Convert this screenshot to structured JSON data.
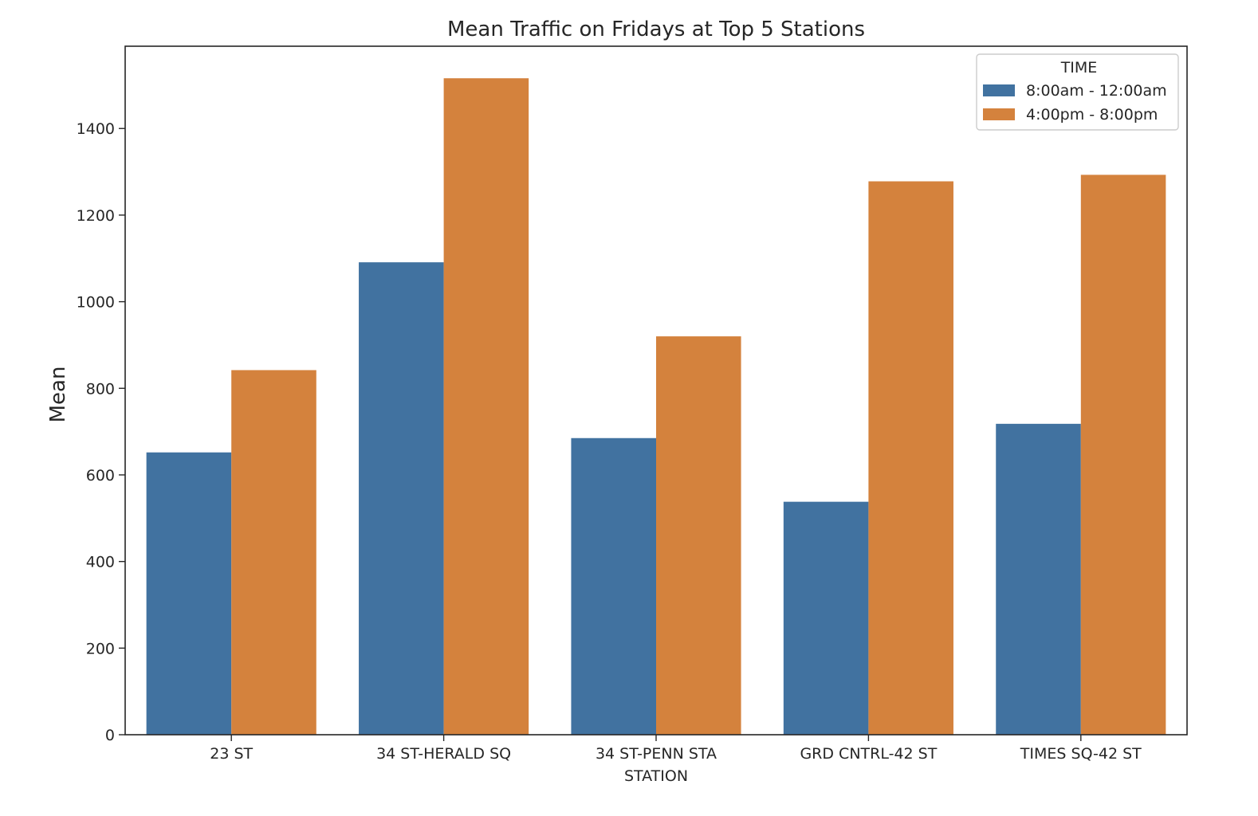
{
  "chart_data": {
    "type": "bar",
    "title": "Mean Traffic on Fridays at Top 5 Stations",
    "xlabel": "STATION",
    "ylabel": "Mean",
    "categories": [
      "23 ST",
      "34 ST-HERALD SQ",
      "34 ST-PENN STA",
      "GRD CNTRL-42 ST",
      "TIMES SQ-42 ST"
    ],
    "series": [
      {
        "name": "8:00am - 12:00am",
        "color": "#4172a0",
        "values": [
          652,
          1091,
          685,
          538,
          718
        ]
      },
      {
        "name": "4:00pm - 8:00pm",
        "color": "#d4823d",
        "values": [
          842,
          1516,
          920,
          1278,
          1293
        ]
      }
    ],
    "yticks": [
      0,
      200,
      400,
      600,
      800,
      1000,
      1200,
      1400
    ],
    "ylim": [
      0,
      1590
    ],
    "grid": false,
    "legend": {
      "title": "TIME",
      "placement": "top-right"
    }
  }
}
